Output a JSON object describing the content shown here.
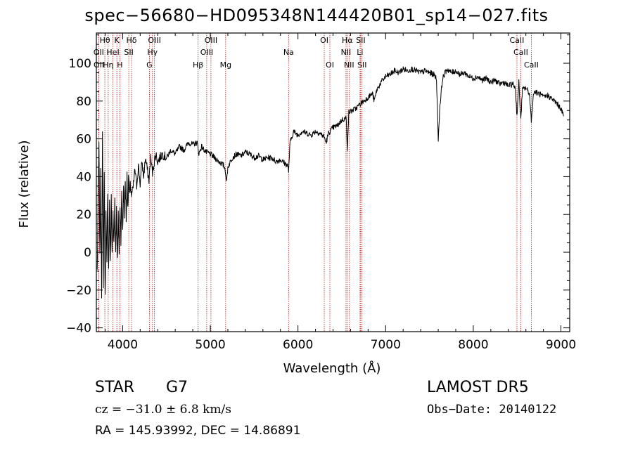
{
  "chart_data": {
    "type": "line",
    "title": "spec−56680−HD095348N144420B01_sp14−027.fits",
    "xlabel": "Wavelength (Å)",
    "ylabel": "Flux (relative)",
    "xlim": [
      3700,
      9100
    ],
    "ylim": [
      -42,
      116
    ],
    "x_ticks": [
      4000,
      5000,
      6000,
      7000,
      8000,
      9000
    ],
    "y_ticks": [
      -40,
      -20,
      0,
      20,
      40,
      60,
      80,
      100
    ],
    "grid": false,
    "line_color": "#000000",
    "marker_color": "#b22222",
    "series": [
      {
        "points": [
          [
            3710,
            -10
          ],
          [
            3720,
            30
          ],
          [
            3730,
            55
          ],
          [
            3740,
            -5
          ],
          [
            3750,
            40
          ],
          [
            3760,
            -20
          ],
          [
            3770,
            60
          ],
          [
            3780,
            -15
          ],
          [
            3790,
            45
          ],
          [
            3800,
            -25
          ],
          [
            3810,
            20
          ],
          [
            3820,
            -8
          ],
          [
            3830,
            35
          ],
          [
            3840,
            -10
          ],
          [
            3850,
            25
          ],
          [
            3860,
            -5
          ],
          [
            3870,
            30
          ],
          [
            3880,
            -3
          ],
          [
            3890,
            20
          ],
          [
            3900,
            5
          ],
          [
            3910,
            28
          ],
          [
            3920,
            2
          ],
          [
            3930,
            22
          ],
          [
            3940,
            -6
          ],
          [
            3950,
            18
          ],
          [
            3960,
            0
          ],
          [
            3970,
            26
          ],
          [
            3980,
            8
          ],
          [
            3990,
            30
          ],
          [
            4000,
            12
          ],
          [
            4010,
            32
          ],
          [
            4020,
            22
          ],
          [
            4030,
            38
          ],
          [
            4040,
            18
          ],
          [
            4050,
            40
          ],
          [
            4060,
            25
          ],
          [
            4070,
            42
          ],
          [
            4080,
            28
          ],
          [
            4090,
            36
          ],
          [
            4100,
            30
          ],
          [
            4120,
            34
          ],
          [
            4140,
            44
          ],
          [
            4160,
            35
          ],
          [
            4180,
            46
          ],
          [
            4200,
            36
          ],
          [
            4220,
            48
          ],
          [
            4240,
            40
          ],
          [
            4260,
            50
          ],
          [
            4280,
            44
          ],
          [
            4300,
            38
          ],
          [
            4320,
            50
          ],
          [
            4340,
            42
          ],
          [
            4360,
            48
          ],
          [
            4380,
            52
          ],
          [
            4400,
            48
          ],
          [
            4450,
            52
          ],
          [
            4500,
            50
          ],
          [
            4550,
            54
          ],
          [
            4600,
            52
          ],
          [
            4650,
            56
          ],
          [
            4700,
            54
          ],
          [
            4750,
            58
          ],
          [
            4800,
            57
          ],
          [
            4850,
            58
          ],
          [
            4870,
            52
          ],
          [
            4900,
            56
          ],
          [
            4950,
            53
          ],
          [
            5000,
            52
          ],
          [
            5050,
            50
          ],
          [
            5100,
            48
          ],
          [
            5150,
            46
          ],
          [
            5170,
            44
          ],
          [
            5185,
            37
          ],
          [
            5200,
            45
          ],
          [
            5250,
            50
          ],
          [
            5300,
            52
          ],
          [
            5350,
            51
          ],
          [
            5400,
            53
          ],
          [
            5450,
            52
          ],
          [
            5500,
            50
          ],
          [
            5550,
            51
          ],
          [
            5600,
            49
          ],
          [
            5650,
            50
          ],
          [
            5700,
            50
          ],
          [
            5750,
            48
          ],
          [
            5800,
            49
          ],
          [
            5850,
            47
          ],
          [
            5880,
            46
          ],
          [
            5893,
            43
          ],
          [
            5910,
            58
          ],
          [
            5950,
            64
          ],
          [
            6000,
            62
          ],
          [
            6050,
            64
          ],
          [
            6100,
            63
          ],
          [
            6150,
            62
          ],
          [
            6200,
            64
          ],
          [
            6250,
            63
          ],
          [
            6300,
            61
          ],
          [
            6320,
            58
          ],
          [
            6350,
            63
          ],
          [
            6400,
            66
          ],
          [
            6450,
            67
          ],
          [
            6500,
            70
          ],
          [
            6550,
            71
          ],
          [
            6563,
            55
          ],
          [
            6580,
            74
          ],
          [
            6620,
            75
          ],
          [
            6660,
            76
          ],
          [
            6700,
            78
          ],
          [
            6750,
            80
          ],
          [
            6800,
            82
          ],
          [
            6850,
            84
          ],
          [
            6870,
            80
          ],
          [
            6900,
            86
          ],
          [
            6950,
            90
          ],
          [
            7000,
            93
          ],
          [
            7050,
            94
          ],
          [
            7100,
            96
          ],
          [
            7150,
            95
          ],
          [
            7200,
            97
          ],
          [
            7250,
            96
          ],
          [
            7300,
            97
          ],
          [
            7350,
            96
          ],
          [
            7400,
            95
          ],
          [
            7450,
            96
          ],
          [
            7500,
            95
          ],
          [
            7550,
            94
          ],
          [
            7580,
            92
          ],
          [
            7600,
            60
          ],
          [
            7620,
            78
          ],
          [
            7650,
            92
          ],
          [
            7700,
            97
          ],
          [
            7750,
            95
          ],
          [
            7800,
            96
          ],
          [
            7850,
            94
          ],
          [
            7900,
            95
          ],
          [
            7950,
            93
          ],
          [
            8000,
            92
          ],
          [
            8050,
            93
          ],
          [
            8100,
            91
          ],
          [
            8150,
            92
          ],
          [
            8200,
            90
          ],
          [
            8250,
            91
          ],
          [
            8300,
            89
          ],
          [
            8350,
            90
          ],
          [
            8400,
            88
          ],
          [
            8450,
            89
          ],
          [
            8480,
            87
          ],
          [
            8498,
            72
          ],
          [
            8520,
            90
          ],
          [
            8542,
            70
          ],
          [
            8560,
            86
          ],
          [
            8600,
            87
          ],
          [
            8640,
            84
          ],
          [
            8662,
            70
          ],
          [
            8690,
            85
          ],
          [
            8750,
            84
          ],
          [
            8800,
            82
          ],
          [
            8850,
            83
          ],
          [
            8900,
            81
          ],
          [
            8950,
            79
          ],
          [
            9000,
            76
          ],
          [
            9030,
            72
          ]
        ]
      }
    ],
    "lines": [
      {
        "label": "Hθ",
        "wl": 3797,
        "row": 0
      },
      {
        "label": "OII",
        "wl": 3727,
        "row": 1
      },
      {
        "label": "OII",
        "wl": 3729,
        "row": 2
      },
      {
        "label": "Hη",
        "wl": 3835,
        "row": 2
      },
      {
        "label": "HeI",
        "wl": 3889,
        "row": 1
      },
      {
        "label": "K",
        "wl": 3934,
        "row": 0
      },
      {
        "label": "H",
        "wl": 3968,
        "row": 2
      },
      {
        "label": "Hδ",
        "wl": 4101,
        "row": 0
      },
      {
        "label": "SII",
        "wl": 4070,
        "row": 1
      },
      {
        "label": "OIII",
        "wl": 4363,
        "row": 0
      },
      {
        "label": "Hγ",
        "wl": 4340,
        "row": 1
      },
      {
        "label": "G",
        "wl": 4305,
        "row": 2
      },
      {
        "label": "Hβ",
        "wl": 4861,
        "row": 2
      },
      {
        "label": "OIII",
        "wl": 5007,
        "row": 0
      },
      {
        "label": "OIII",
        "wl": 4959,
        "row": 1
      },
      {
        "label": "Mg",
        "wl": 5175,
        "row": 2
      },
      {
        "label": "Na",
        "wl": 5893,
        "row": 1
      },
      {
        "label": "OI",
        "wl": 6300,
        "row": 0
      },
      {
        "label": "OI",
        "wl": 6364,
        "row": 2
      },
      {
        "label": "Hα",
        "wl": 6563,
        "row": 0
      },
      {
        "label": "NII",
        "wl": 6548,
        "row": 1
      },
      {
        "label": "NII",
        "wl": 6583,
        "row": 2
      },
      {
        "label": "SII",
        "wl": 6716,
        "row": 0
      },
      {
        "label": "Li",
        "wl": 6708,
        "row": 1
      },
      {
        "label": "SII",
        "wl": 6731,
        "row": 2
      },
      {
        "label": "CaII",
        "wl": 8498,
        "row": 0
      },
      {
        "label": "CaII",
        "wl": 8542,
        "row": 1
      },
      {
        "label": "CaII",
        "wl": 8662,
        "row": 2
      }
    ]
  },
  "info": {
    "object_class": "STAR",
    "subclass": "G7",
    "survey": "LAMOST DR5",
    "cz": "cz = −31.0 ± 6.8 km/s",
    "obs_date": "Obs−Date: 20140122",
    "radec": "RA = 145.93992, DEC =  14.86891"
  }
}
